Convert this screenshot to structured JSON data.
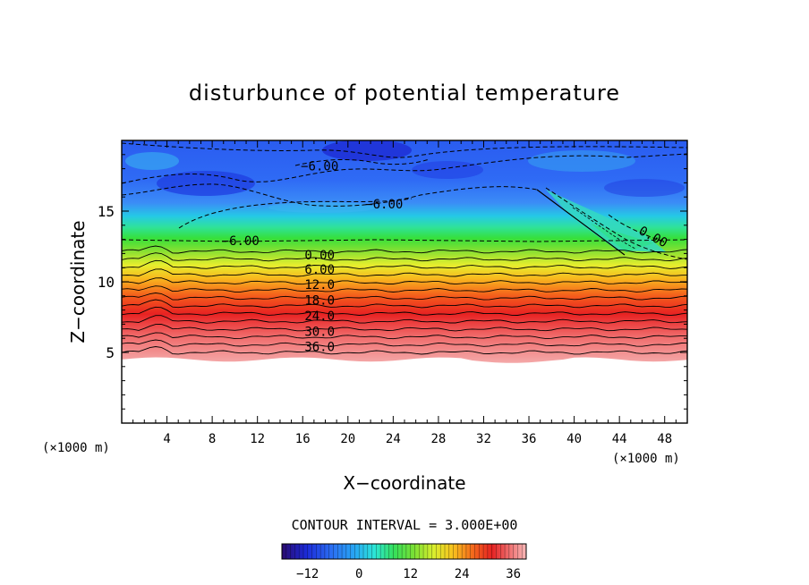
{
  "chart_data": {
    "type": "heatmap",
    "title": "disturbunce of potential temperature",
    "xlabel": "X−coordinate",
    "ylabel": "Z−coordinate",
    "x_unit_left": "(×1000 m)",
    "x_unit_right": "(×1000 m)",
    "xlim": [
      0,
      50
    ],
    "ylim": [
      0,
      20
    ],
    "x_ticks": [
      4,
      8,
      12,
      16,
      20,
      24,
      28,
      32,
      36,
      40,
      44,
      48
    ],
    "y_ticks": [
      5,
      10,
      15
    ],
    "contour_interval_text": "CONTOUR INTERVAL = 3.000E+00",
    "colorbar": {
      "min": -18,
      "max": 39,
      "ticks": [
        "−12",
        "0",
        "12",
        "24",
        "36"
      ],
      "tick_values": [
        -12,
        0,
        12,
        24,
        36
      ]
    },
    "contour_labels": [
      {
        "text": "0.00",
        "x": 17.5,
        "z": 11.9
      },
      {
        "text": "6.00",
        "x": 17.5,
        "z": 10.9
      },
      {
        "text": "12.0",
        "x": 17.5,
        "z": 9.8
      },
      {
        "text": "18.0",
        "x": 17.5,
        "z": 8.7
      },
      {
        "text": "24.0",
        "x": 17.5,
        "z": 7.6
      },
      {
        "text": "30.0",
        "x": 17.5,
        "z": 6.5
      },
      {
        "text": "36.0",
        "x": 17.5,
        "z": 5.4
      },
      {
        "text": "−6.00",
        "x": 10.5,
        "z": 12.9
      },
      {
        "text": "−6.00",
        "x": 17.5,
        "z": 18.2
      },
      {
        "text": "−6.00",
        "x": 23.2,
        "z": 15.5
      },
      {
        "text": "0.00",
        "x": 47,
        "z": 13.2
      }
    ],
    "bottom_of_field_z": 4.5,
    "zero_isoline_z": 12.6
  }
}
